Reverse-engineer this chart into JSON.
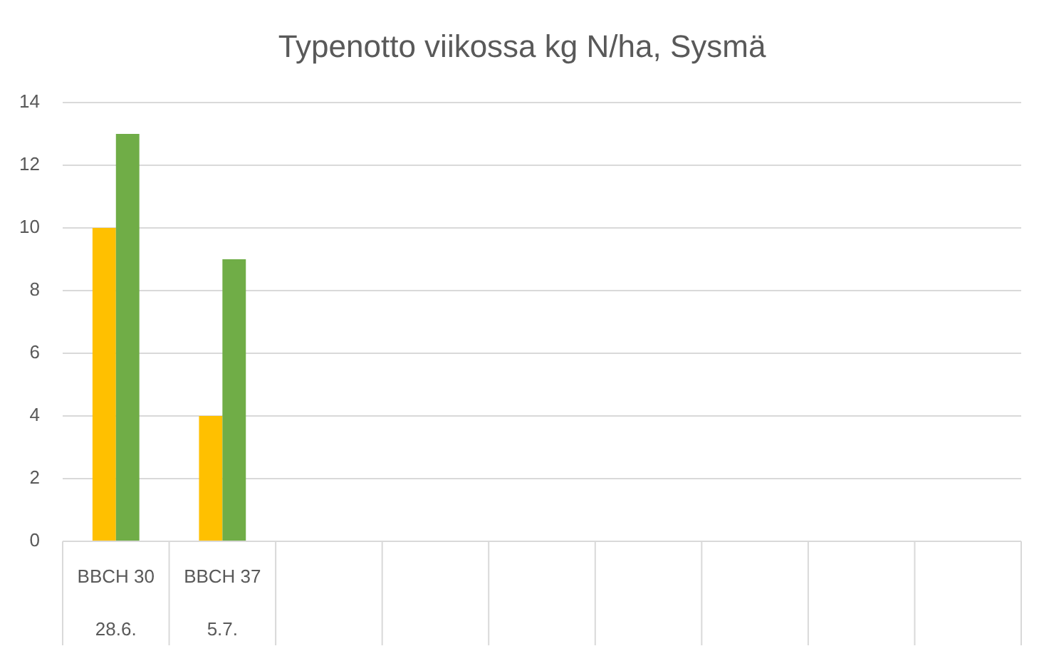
{
  "chart_data": {
    "type": "bar",
    "title": "Typenotto viikossa kg N/ha, Sysmä",
    "categories": [
      "BBCH 30\n28.6.",
      "BBCH 37\n5.7.",
      null,
      null,
      null,
      null,
      null,
      null,
      null
    ],
    "series": [
      {
        "color": "#ffc000",
        "values": [
          10,
          4,
          null,
          null,
          null,
          null,
          null,
          null,
          null
        ]
      },
      {
        "color": "#70ad47",
        "values": [
          13,
          9,
          null,
          null,
          null,
          null,
          null,
          null,
          null
        ]
      }
    ],
    "ylim": [
      0,
      14
    ],
    "yticks": [
      0,
      2,
      4,
      6,
      8,
      10,
      12,
      14
    ],
    "grid": "y"
  }
}
